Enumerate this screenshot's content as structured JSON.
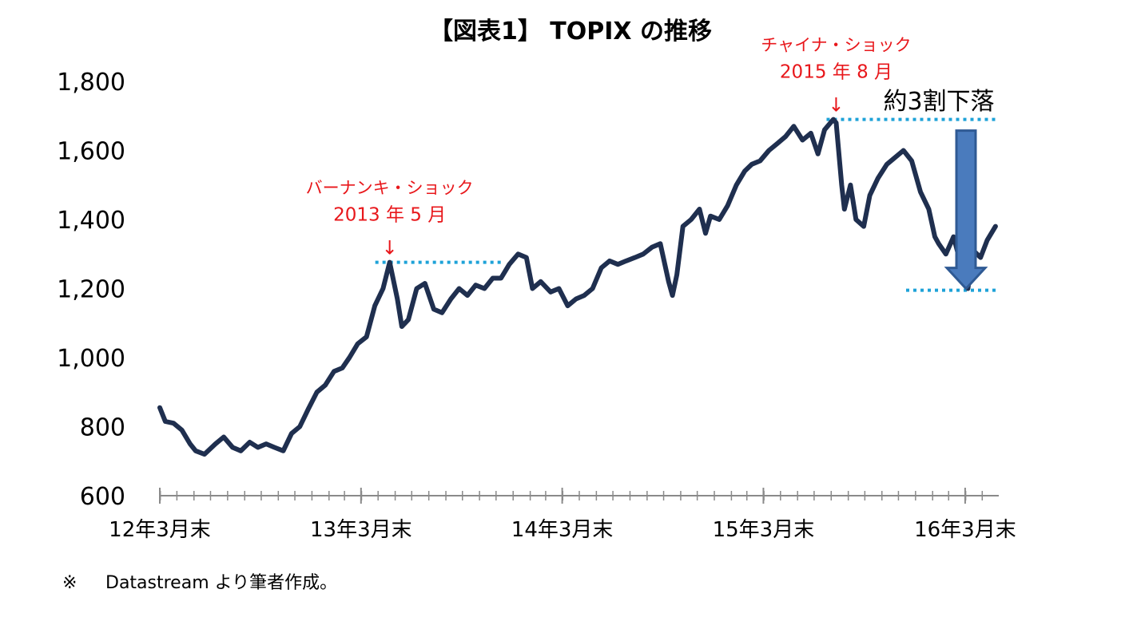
{
  "chart_data": {
    "type": "line",
    "title": "【図表1】 TOPIX の推移",
    "xlabel": "",
    "ylabel": "",
    "ylim": [
      600,
      1800
    ],
    "yticks": [
      600,
      800,
      1000,
      1200,
      1400,
      1600,
      1800
    ],
    "ytick_labels": [
      "600",
      "800",
      "1,000",
      "1,200",
      "1,400",
      "1,600",
      "1,800"
    ],
    "x_range": [
      "2012-03-31",
      "2016-05-31"
    ],
    "xtick_labels": [
      "12年3月末",
      "13年3月末",
      "14年3月末",
      "15年3月末",
      "16年3月末"
    ],
    "xtick_dates": [
      "2012-03-31",
      "2013-03-31",
      "2014-03-31",
      "2015-03-31",
      "2016-03-31"
    ],
    "grid": false,
    "line_color": "#1f2f4f",
    "annotation_color": "#e8171b",
    "dotted_line_color": "#1ea2d8",
    "arrow_color": "#4a7bbd",
    "series": [
      {
        "x": [
          "2012-03-31",
          "2012-04-10",
          "2012-04-25",
          "2012-05-10",
          "2012-05-25",
          "2012-06-04",
          "2012-06-20",
          "2012-07-10",
          "2012-07-25",
          "2012-08-10",
          "2012-08-25",
          "2012-09-10",
          "2012-09-25",
          "2012-10-10",
          "2012-10-25",
          "2012-11-10",
          "2012-11-25",
          "2012-12-10",
          "2012-12-25",
          "2013-01-10",
          "2013-01-25",
          "2013-02-10",
          "2013-02-25",
          "2013-03-10",
          "2013-03-25",
          "2013-04-10",
          "2013-04-25",
          "2013-05-10",
          "2013-05-22",
          "2013-06-05",
          "2013-06-13",
          "2013-06-25",
          "2013-07-10",
          "2013-07-25",
          "2013-08-10",
          "2013-08-25",
          "2013-09-10",
          "2013-09-25",
          "2013-10-10",
          "2013-10-25",
          "2013-11-10",
          "2013-11-25",
          "2013-12-10",
          "2013-12-25",
          "2014-01-10",
          "2014-01-25",
          "2014-02-05",
          "2014-02-20",
          "2014-03-10",
          "2014-03-25",
          "2014-04-10",
          "2014-04-25",
          "2014-05-10",
          "2014-05-25",
          "2014-06-10",
          "2014-06-25",
          "2014-07-10",
          "2014-07-25",
          "2014-08-10",
          "2014-08-25",
          "2014-09-10",
          "2014-09-25",
          "2014-10-10",
          "2014-10-17",
          "2014-10-25",
          "2014-11-05",
          "2014-11-20",
          "2014-12-05",
          "2014-12-16",
          "2014-12-25",
          "2015-01-10",
          "2015-01-25",
          "2015-02-10",
          "2015-02-25",
          "2015-03-10",
          "2015-03-25",
          "2015-04-10",
          "2015-04-25",
          "2015-05-10",
          "2015-05-25",
          "2015-06-10",
          "2015-06-25",
          "2015-07-08",
          "2015-07-20",
          "2015-08-05",
          "2015-08-10",
          "2015-08-20",
          "2015-08-25",
          "2015-09-05",
          "2015-09-15",
          "2015-09-29",
          "2015-10-10",
          "2015-10-25",
          "2015-11-10",
          "2015-11-25",
          "2015-12-10",
          "2015-12-25",
          "2016-01-10",
          "2016-01-25",
          "2016-02-05",
          "2016-02-12",
          "2016-02-25",
          "2016-03-10",
          "2016-03-25",
          "2016-04-05",
          "2016-04-15",
          "2016-04-28",
          "2016-05-10",
          "2016-05-25"
        ],
        "values": [
          855,
          815,
          810,
          790,
          750,
          730,
          720,
          750,
          770,
          740,
          730,
          755,
          740,
          750,
          740,
          730,
          780,
          800,
          850,
          900,
          920,
          960,
          970,
          1000,
          1040,
          1060,
          1150,
          1200,
          1276,
          1170,
          1090,
          1110,
          1200,
          1215,
          1140,
          1130,
          1170,
          1200,
          1180,
          1210,
          1200,
          1230,
          1230,
          1270,
          1300,
          1290,
          1200,
          1220,
          1190,
          1200,
          1150,
          1170,
          1180,
          1200,
          1260,
          1280,
          1270,
          1280,
          1290,
          1300,
          1320,
          1330,
          1220,
          1180,
          1240,
          1380,
          1400,
          1430,
          1360,
          1410,
          1400,
          1440,
          1500,
          1540,
          1560,
          1570,
          1600,
          1620,
          1640,
          1670,
          1630,
          1650,
          1590,
          1660,
          1690,
          1680,
          1500,
          1430,
          1500,
          1400,
          1380,
          1470,
          1520,
          1560,
          1580,
          1600,
          1570,
          1480,
          1430,
          1350,
          1330,
          1300,
          1350,
          1260,
          1200,
          1310,
          1290,
          1340,
          1380
        ]
      }
    ],
    "annotations": [
      {
        "text1": "バーナンキ・ショック",
        "text2": "2013 年 5 月",
        "arrow": "↓",
        "x": "2013-05-22",
        "y": 1276
      },
      {
        "text1": "チャイナ・ショック",
        "text2": "2015 年 8 月",
        "arrow": "↓",
        "x": "2015-08-10",
        "y": 1690
      }
    ],
    "decline_label": "約3割下落",
    "decline_from": 1690,
    "decline_to": 1195
  },
  "note": {
    "mark": "※",
    "text": "Datastream より筆者作成。"
  }
}
